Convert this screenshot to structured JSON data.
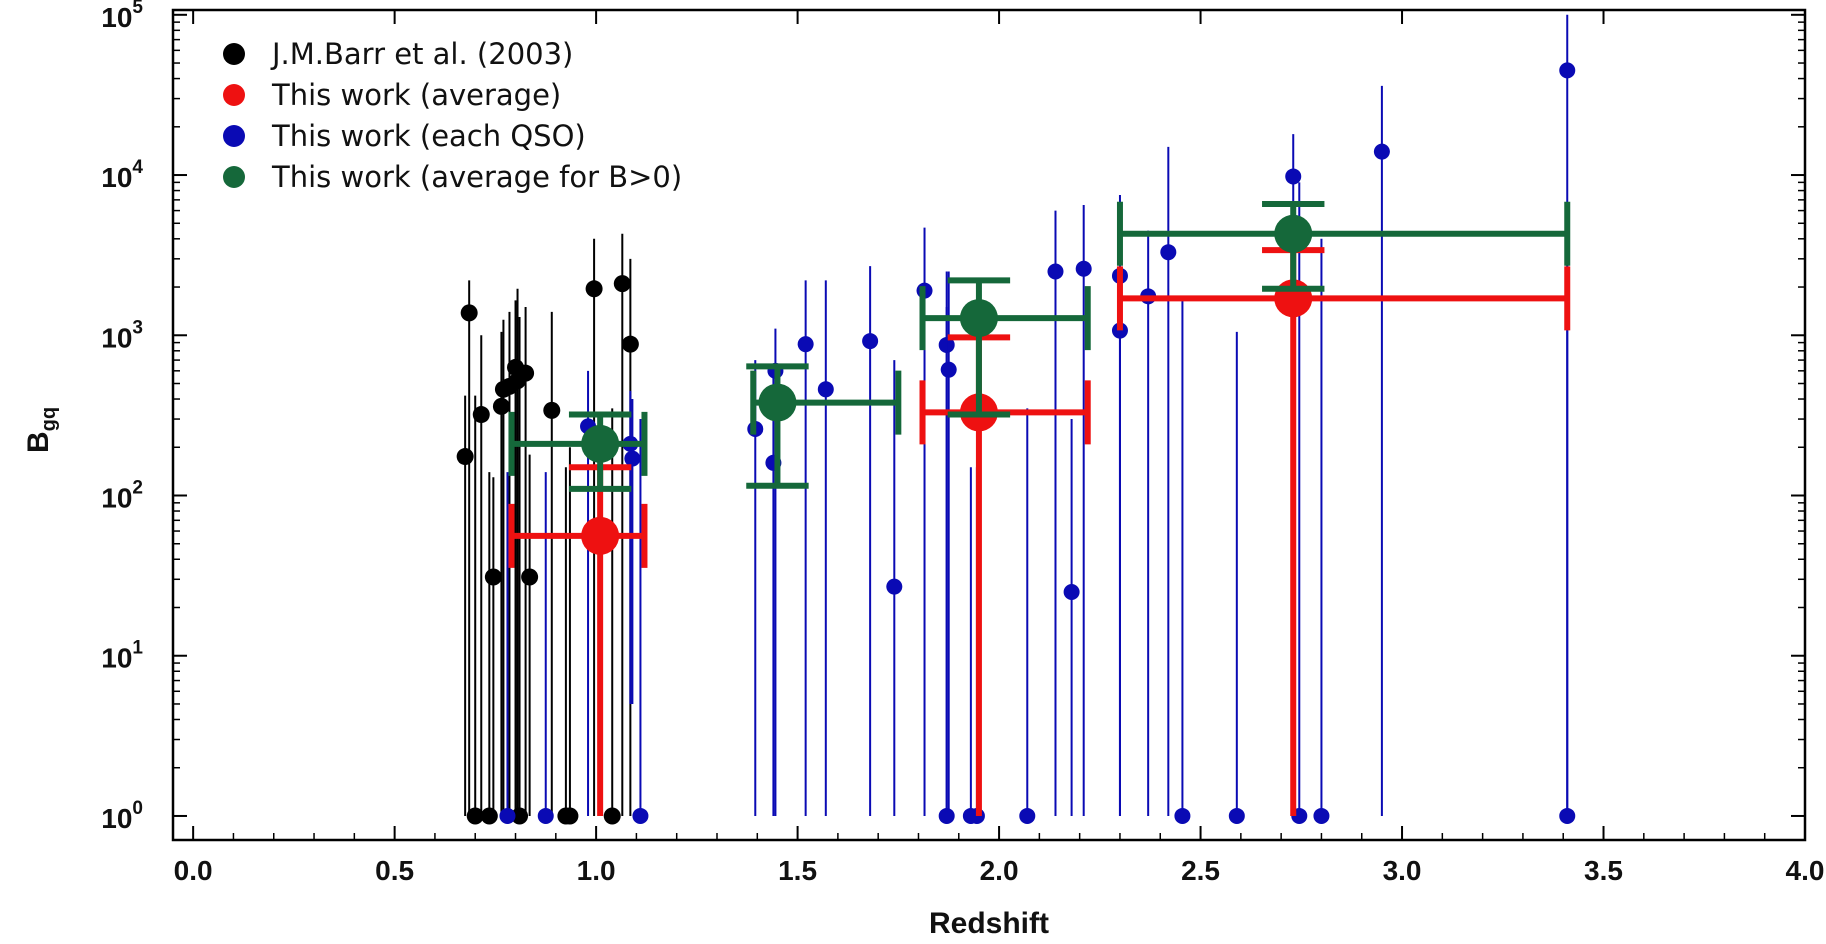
{
  "chart_data": {
    "type": "scatter",
    "xlabel": "Redshift",
    "ylabel_main": "B",
    "ylabel_sub": "gq",
    "xlim": [
      -0.05,
      4.0
    ],
    "ylim_log10": [
      -0.15,
      5.03
    ],
    "y_scale": "log",
    "x_ticks": [
      "0.0",
      "0.5",
      "1.0",
      "1.5",
      "2.0",
      "2.5",
      "3.0",
      "3.5",
      "4.0"
    ],
    "x_tick_values": [
      0.0,
      0.5,
      1.0,
      1.5,
      2.0,
      2.5,
      3.0,
      3.5,
      4.0
    ],
    "y_tick_base": "10",
    "y_tick_exponents": [
      "0",
      "1",
      "2",
      "3",
      "4",
      "5"
    ],
    "legend_position": "top-left",
    "colors": {
      "barr": "#000000",
      "average": "#ee1111",
      "each_qso": "#0a0ab4",
      "average_bpos": "#15683a"
    },
    "series": [
      {
        "key": "barr",
        "name": "J.M.Barr et al. (2003)",
        "points": [
          {
            "x": 0.675,
            "y": 175,
            "ylo": 1,
            "yhi": 420
          },
          {
            "x": 0.685,
            "y": 1380,
            "ylo": 1,
            "yhi": 2200
          },
          {
            "x": 0.7,
            "y": 1,
            "ylo": 1,
            "yhi": 420
          },
          {
            "x": 0.715,
            "y": 320,
            "ylo": 1,
            "yhi": 1000
          },
          {
            "x": 0.735,
            "y": 1,
            "ylo": 1,
            "yhi": 140
          },
          {
            "x": 0.745,
            "y": 31,
            "ylo": 1,
            "yhi": 130
          },
          {
            "x": 0.765,
            "y": 360,
            "ylo": 1,
            "yhi": 1050
          },
          {
            "x": 0.77,
            "y": 460,
            "ylo": 1,
            "yhi": 1250
          },
          {
            "x": 0.785,
            "y": 480,
            "ylo": 1,
            "yhi": 1400
          },
          {
            "x": 0.8,
            "y": 630,
            "ylo": 1,
            "yhi": 1650
          },
          {
            "x": 0.805,
            "y": 520,
            "ylo": 1,
            "yhi": 1950
          },
          {
            "x": 0.81,
            "y": 1,
            "ylo": 1,
            "yhi": 1300
          },
          {
            "x": 0.825,
            "y": 580,
            "ylo": 1,
            "yhi": 1500
          },
          {
            "x": 0.835,
            "y": 31,
            "ylo": 1,
            "yhi": 180
          },
          {
            "x": 0.925,
            "y": 1,
            "ylo": 1,
            "yhi": 150
          },
          {
            "x": 0.935,
            "y": 1,
            "ylo": 1,
            "yhi": 200
          },
          {
            "x": 0.89,
            "y": 340,
            "ylo": 1,
            "yhi": 1400
          },
          {
            "x": 0.995,
            "y": 1950,
            "ylo": 1,
            "yhi": 4000
          },
          {
            "x": 1.04,
            "y": 1,
            "ylo": 1,
            "yhi": 350
          },
          {
            "x": 1.065,
            "y": 2100,
            "ylo": 1,
            "yhi": 4300
          },
          {
            "x": 1.085,
            "y": 880,
            "ylo": 1,
            "yhi": 3000
          }
        ]
      },
      {
        "key": "each_qso",
        "name": "This work (each QSO)",
        "points": [
          {
            "x": 0.78,
            "y": 1,
            "ylo": 1,
            "yhi": 140
          },
          {
            "x": 0.875,
            "y": 1,
            "ylo": 1,
            "yhi": 140
          },
          {
            "x": 0.98,
            "y": 270,
            "ylo": 1,
            "yhi": 600
          },
          {
            "x": 1.085,
            "y": 210,
            "ylo": 5,
            "yhi": 450
          },
          {
            "x": 1.09,
            "y": 170,
            "ylo": 5,
            "yhi": 400
          },
          {
            "x": 1.11,
            "y": 1,
            "ylo": 1,
            "yhi": 300
          },
          {
            "x": 1.395,
            "y": 260,
            "ylo": 1,
            "yhi": 700
          },
          {
            "x": 1.44,
            "y": 160,
            "ylo": 1,
            "yhi": 600
          },
          {
            "x": 1.445,
            "y": 600,
            "ylo": 1,
            "yhi": 1100
          },
          {
            "x": 1.52,
            "y": 880,
            "ylo": 1,
            "yhi": 2200
          },
          {
            "x": 1.57,
            "y": 460,
            "ylo": 1,
            "yhi": 2200
          },
          {
            "x": 1.68,
            "y": 920,
            "ylo": 1,
            "yhi": 2700
          },
          {
            "x": 1.74,
            "y": 27,
            "ylo": 1,
            "yhi": 700
          },
          {
            "x": 1.815,
            "y": 1900,
            "ylo": 1,
            "yhi": 4700
          },
          {
            "x": 1.87,
            "y": 870,
            "ylo": 1,
            "yhi": 2500
          },
          {
            "x": 1.875,
            "y": 610,
            "ylo": 1,
            "yhi": 2500
          },
          {
            "x": 1.87,
            "y": 1,
            "ylo": 1,
            "yhi": 1500
          },
          {
            "x": 1.93,
            "y": 1,
            "ylo": 1,
            "yhi": 150
          },
          {
            "x": 1.945,
            "y": 1,
            "ylo": 1,
            "yhi": 150
          },
          {
            "x": 2.07,
            "y": 1,
            "ylo": 1,
            "yhi": 350
          },
          {
            "x": 2.14,
            "y": 2500,
            "ylo": 1,
            "yhi": 6000
          },
          {
            "x": 2.18,
            "y": 25,
            "ylo": 1,
            "yhi": 300
          },
          {
            "x": 2.21,
            "y": 2600,
            "ylo": 1,
            "yhi": 6500
          },
          {
            "x": 2.3,
            "y": 2350,
            "ylo": 1,
            "yhi": 7500
          },
          {
            "x": 2.3,
            "y": 1070,
            "ylo": 1,
            "yhi": 4000
          },
          {
            "x": 2.37,
            "y": 1750,
            "ylo": 1,
            "yhi": 4500
          },
          {
            "x": 2.42,
            "y": 3300,
            "ylo": 1,
            "yhi": 15000
          },
          {
            "x": 2.455,
            "y": 1,
            "ylo": 1,
            "yhi": 1700
          },
          {
            "x": 2.59,
            "y": 1,
            "ylo": 1,
            "yhi": 1050
          },
          {
            "x": 2.73,
            "y": 9800,
            "ylo": 1,
            "yhi": 18000
          },
          {
            "x": 2.745,
            "y": 1,
            "ylo": 1,
            "yhi": 9000
          },
          {
            "x": 2.8,
            "y": 1,
            "ylo": 1,
            "yhi": 4000
          },
          {
            "x": 2.95,
            "y": 14000,
            "ylo": 1,
            "yhi": 36000
          },
          {
            "x": 3.41,
            "y": 45000,
            "ylo": 1,
            "yhi": 100000
          },
          {
            "x": 3.41,
            "y": 1,
            "ylo": 1,
            "yhi": 5000
          }
        ]
      },
      {
        "key": "average",
        "name": "This work (average)",
        "points": [
          {
            "x": 1.01,
            "y": 56,
            "xlo": 0.79,
            "xhi": 1.12,
            "ylo": 1,
            "yhi": 150
          },
          {
            "x": 1.95,
            "y": 330,
            "xlo": 1.81,
            "xhi": 2.22,
            "ylo": 1,
            "yhi": 970
          },
          {
            "x": 2.73,
            "y": 1700,
            "xlo": 2.3,
            "xhi": 3.41,
            "ylo": 1,
            "yhi": 3400
          }
        ]
      },
      {
        "key": "average_bpos",
        "name": "This work (average for B>0)",
        "points": [
          {
            "x": 1.01,
            "y": 210,
            "xlo": 0.79,
            "xhi": 1.12,
            "ylo": 110,
            "yhi": 320
          },
          {
            "x": 1.45,
            "y": 380,
            "xlo": 1.39,
            "xhi": 1.75,
            "ylo": 115,
            "yhi": 640
          },
          {
            "x": 1.95,
            "y": 1280,
            "xlo": 1.81,
            "xhi": 2.22,
            "ylo": 320,
            "yhi": 2200
          },
          {
            "x": 2.73,
            "y": 4300,
            "xlo": 2.3,
            "xhi": 3.41,
            "ylo": 1950,
            "yhi": 6600
          }
        ]
      }
    ]
  },
  "legend": [
    {
      "key": "barr",
      "label": "J.M.Barr et al. (2003)"
    },
    {
      "key": "average",
      "label": "This work (average)"
    },
    {
      "key": "each_qso",
      "label": "This work (each QSO)"
    },
    {
      "key": "average_bpos",
      "label": "This work (average for B>0)"
    }
  ]
}
